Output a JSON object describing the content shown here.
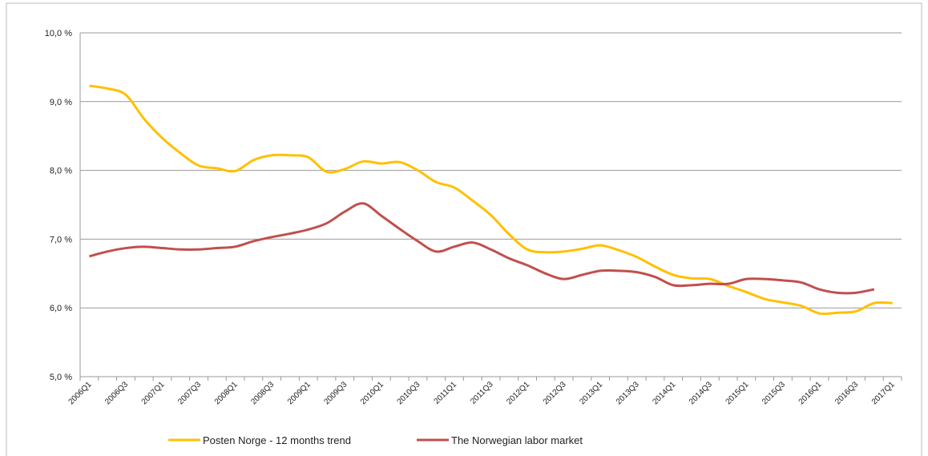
{
  "chart_data": {
    "type": "line",
    "categories": [
      "2006Q1",
      null,
      "2006Q3",
      null,
      "2007Q1",
      null,
      "2007Q3",
      null,
      "2008Q1",
      null,
      "2008Q3",
      null,
      "2009Q1",
      null,
      "2009Q3",
      null,
      "2010Q1",
      null,
      "2010Q3",
      null,
      "2011Q1",
      null,
      "2011Q3",
      null,
      "2012Q1",
      null,
      "2012Q3",
      null,
      "2013Q1",
      null,
      "2013Q3",
      null,
      "2014Q1",
      null,
      "2014Q3",
      null,
      "2015Q1",
      null,
      "2015Q3",
      null,
      "2016Q1",
      null,
      "2016Q3",
      null,
      "2017Q1"
    ],
    "series": [
      {
        "name": "Posten Norge - 12 months trend",
        "color": "#ffc000",
        "values": [
          9.23,
          9.19,
          9.1,
          8.75,
          8.47,
          8.25,
          8.07,
          8.03,
          7.99,
          8.15,
          8.22,
          8.22,
          8.19,
          7.98,
          8.02,
          8.13,
          8.1,
          8.12,
          8.0,
          7.83,
          7.75,
          7.56,
          7.35,
          7.07,
          6.85,
          6.81,
          6.82,
          6.86,
          6.91,
          6.84,
          6.74,
          6.6,
          6.48,
          6.43,
          6.42,
          6.32,
          6.23,
          6.13,
          6.08,
          6.03,
          5.92,
          5.93,
          5.95,
          6.07,
          6.07
        ]
      },
      {
        "name": "The Norwegian labor market",
        "color": "#c0504d",
        "values": [
          6.75,
          6.82,
          6.87,
          6.89,
          6.87,
          6.85,
          6.85,
          6.87,
          6.89,
          6.97,
          7.03,
          7.08,
          7.14,
          7.23,
          7.4,
          7.52,
          7.34,
          7.15,
          6.97,
          6.82,
          6.89,
          6.95,
          6.85,
          6.72,
          6.62,
          6.5,
          6.42,
          6.48,
          6.54,
          6.54,
          6.52,
          6.45,
          6.33,
          6.33,
          6.35,
          6.35,
          6.42,
          6.42,
          6.4,
          6.37,
          6.27,
          6.22,
          6.22,
          6.27,
          null
        ]
      }
    ],
    "ylim": [
      5,
      10
    ],
    "yticks": [
      {
        "value": 5,
        "label": "5,0 %"
      },
      {
        "value": 6,
        "label": "6,0 %"
      },
      {
        "value": 7,
        "label": "7,0 %"
      },
      {
        "value": 8,
        "label": "8,0 %"
      },
      {
        "value": 9,
        "label": "9,0 %"
      },
      {
        "value": 10,
        "label": "10,0 %"
      }
    ],
    "grid": true
  }
}
